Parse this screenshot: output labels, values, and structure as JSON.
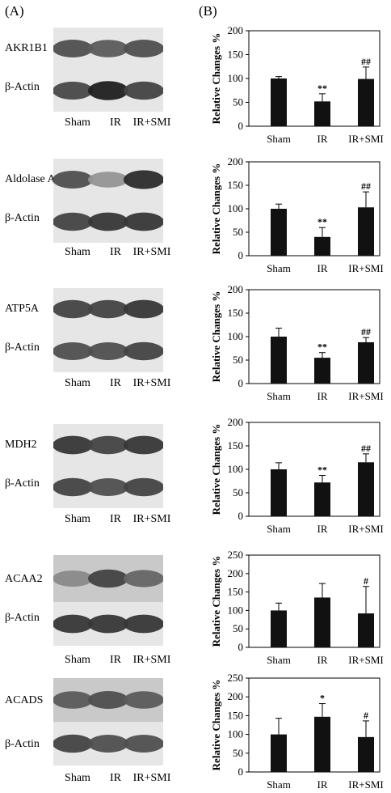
{
  "panels": {
    "a_label": "(A)",
    "b_label": "(B)"
  },
  "blots": [
    {
      "protein": "AKR1B1",
      "control": "β-Actin",
      "lanes": [
        "Sham",
        "IR",
        "IR+SMI"
      ]
    },
    {
      "protein": "Aldolase A",
      "control": "β-Actin",
      "lanes": [
        "Sham",
        "IR",
        "IR+SMI"
      ]
    },
    {
      "protein": "ATP5A",
      "control": "β-Actin",
      "lanes": [
        "Sham",
        "IR",
        "IR+SMI"
      ]
    },
    {
      "protein": "MDH2",
      "control": "β-Actin",
      "lanes": [
        "Sham",
        "IR",
        "IR+SMI"
      ]
    },
    {
      "protein": "ACAA2",
      "control": "β-Actin",
      "lanes": [
        "Sham",
        "IR",
        "IR+SMI"
      ]
    },
    {
      "protein": "ACADS",
      "control": "β-Actin",
      "lanes": [
        "Sham",
        "IR",
        "IR+SMI"
      ]
    }
  ],
  "chart_data": [
    {
      "type": "bar",
      "categories": [
        "Sham",
        "IR",
        "IR+SMI"
      ],
      "values": [
        100,
        52,
        99
      ],
      "errors": [
        4,
        16,
        25
      ],
      "annotations": [
        "",
        "**",
        "##"
      ],
      "ylabel": "Relative Changes %",
      "ylim": [
        0,
        200
      ],
      "yticks": [
        0,
        50,
        100,
        150,
        200
      ],
      "bar_color": "#111111"
    },
    {
      "type": "bar",
      "categories": [
        "Sham",
        "IR",
        "IR+SMI"
      ],
      "values": [
        100,
        40,
        103
      ],
      "errors": [
        10,
        20,
        33
      ],
      "annotations": [
        "",
        "**",
        "##"
      ],
      "ylabel": "Relative Changes %",
      "ylim": [
        0,
        200
      ],
      "yticks": [
        0,
        50,
        100,
        150,
        200
      ],
      "bar_color": "#111111"
    },
    {
      "type": "bar",
      "categories": [
        "Sham",
        "IR",
        "IR+SMI"
      ],
      "values": [
        100,
        55,
        88
      ],
      "errors": [
        18,
        11,
        10
      ],
      "annotations": [
        "",
        "**",
        "##"
      ],
      "ylabel": "Relative Changes %",
      "ylim": [
        0,
        200
      ],
      "yticks": [
        0,
        50,
        100,
        150,
        200
      ],
      "bar_color": "#111111"
    },
    {
      "type": "bar",
      "categories": [
        "Sham",
        "IR",
        "IR+SMI"
      ],
      "values": [
        100,
        72,
        115
      ],
      "errors": [
        14,
        15,
        18
      ],
      "annotations": [
        "",
        "**",
        "##"
      ],
      "ylabel": "Relative Changes %",
      "ylim": [
        0,
        200
      ],
      "yticks": [
        0,
        50,
        100,
        150,
        200
      ],
      "bar_color": "#111111"
    },
    {
      "type": "bar",
      "categories": [
        "Sham",
        "IR",
        "IR+SMI"
      ],
      "values": [
        100,
        135,
        92
      ],
      "errors": [
        20,
        38,
        73
      ],
      "annotations": [
        "",
        "",
        "#"
      ],
      "ylabel": "Relative Changes %",
      "ylim": [
        0,
        250
      ],
      "yticks": [
        0,
        50,
        100,
        150,
        200,
        250
      ],
      "bar_color": "#111111"
    },
    {
      "type": "bar",
      "categories": [
        "Sham",
        "IR",
        "IR+SMI"
      ],
      "values": [
        100,
        147,
        93
      ],
      "errors": [
        43,
        35,
        43
      ],
      "annotations": [
        "",
        "*",
        "#"
      ],
      "ylabel": "Relative Changes %",
      "ylim": [
        0,
        250
      ],
      "yticks": [
        0,
        50,
        100,
        150,
        200,
        250
      ],
      "bar_color": "#111111"
    }
  ]
}
